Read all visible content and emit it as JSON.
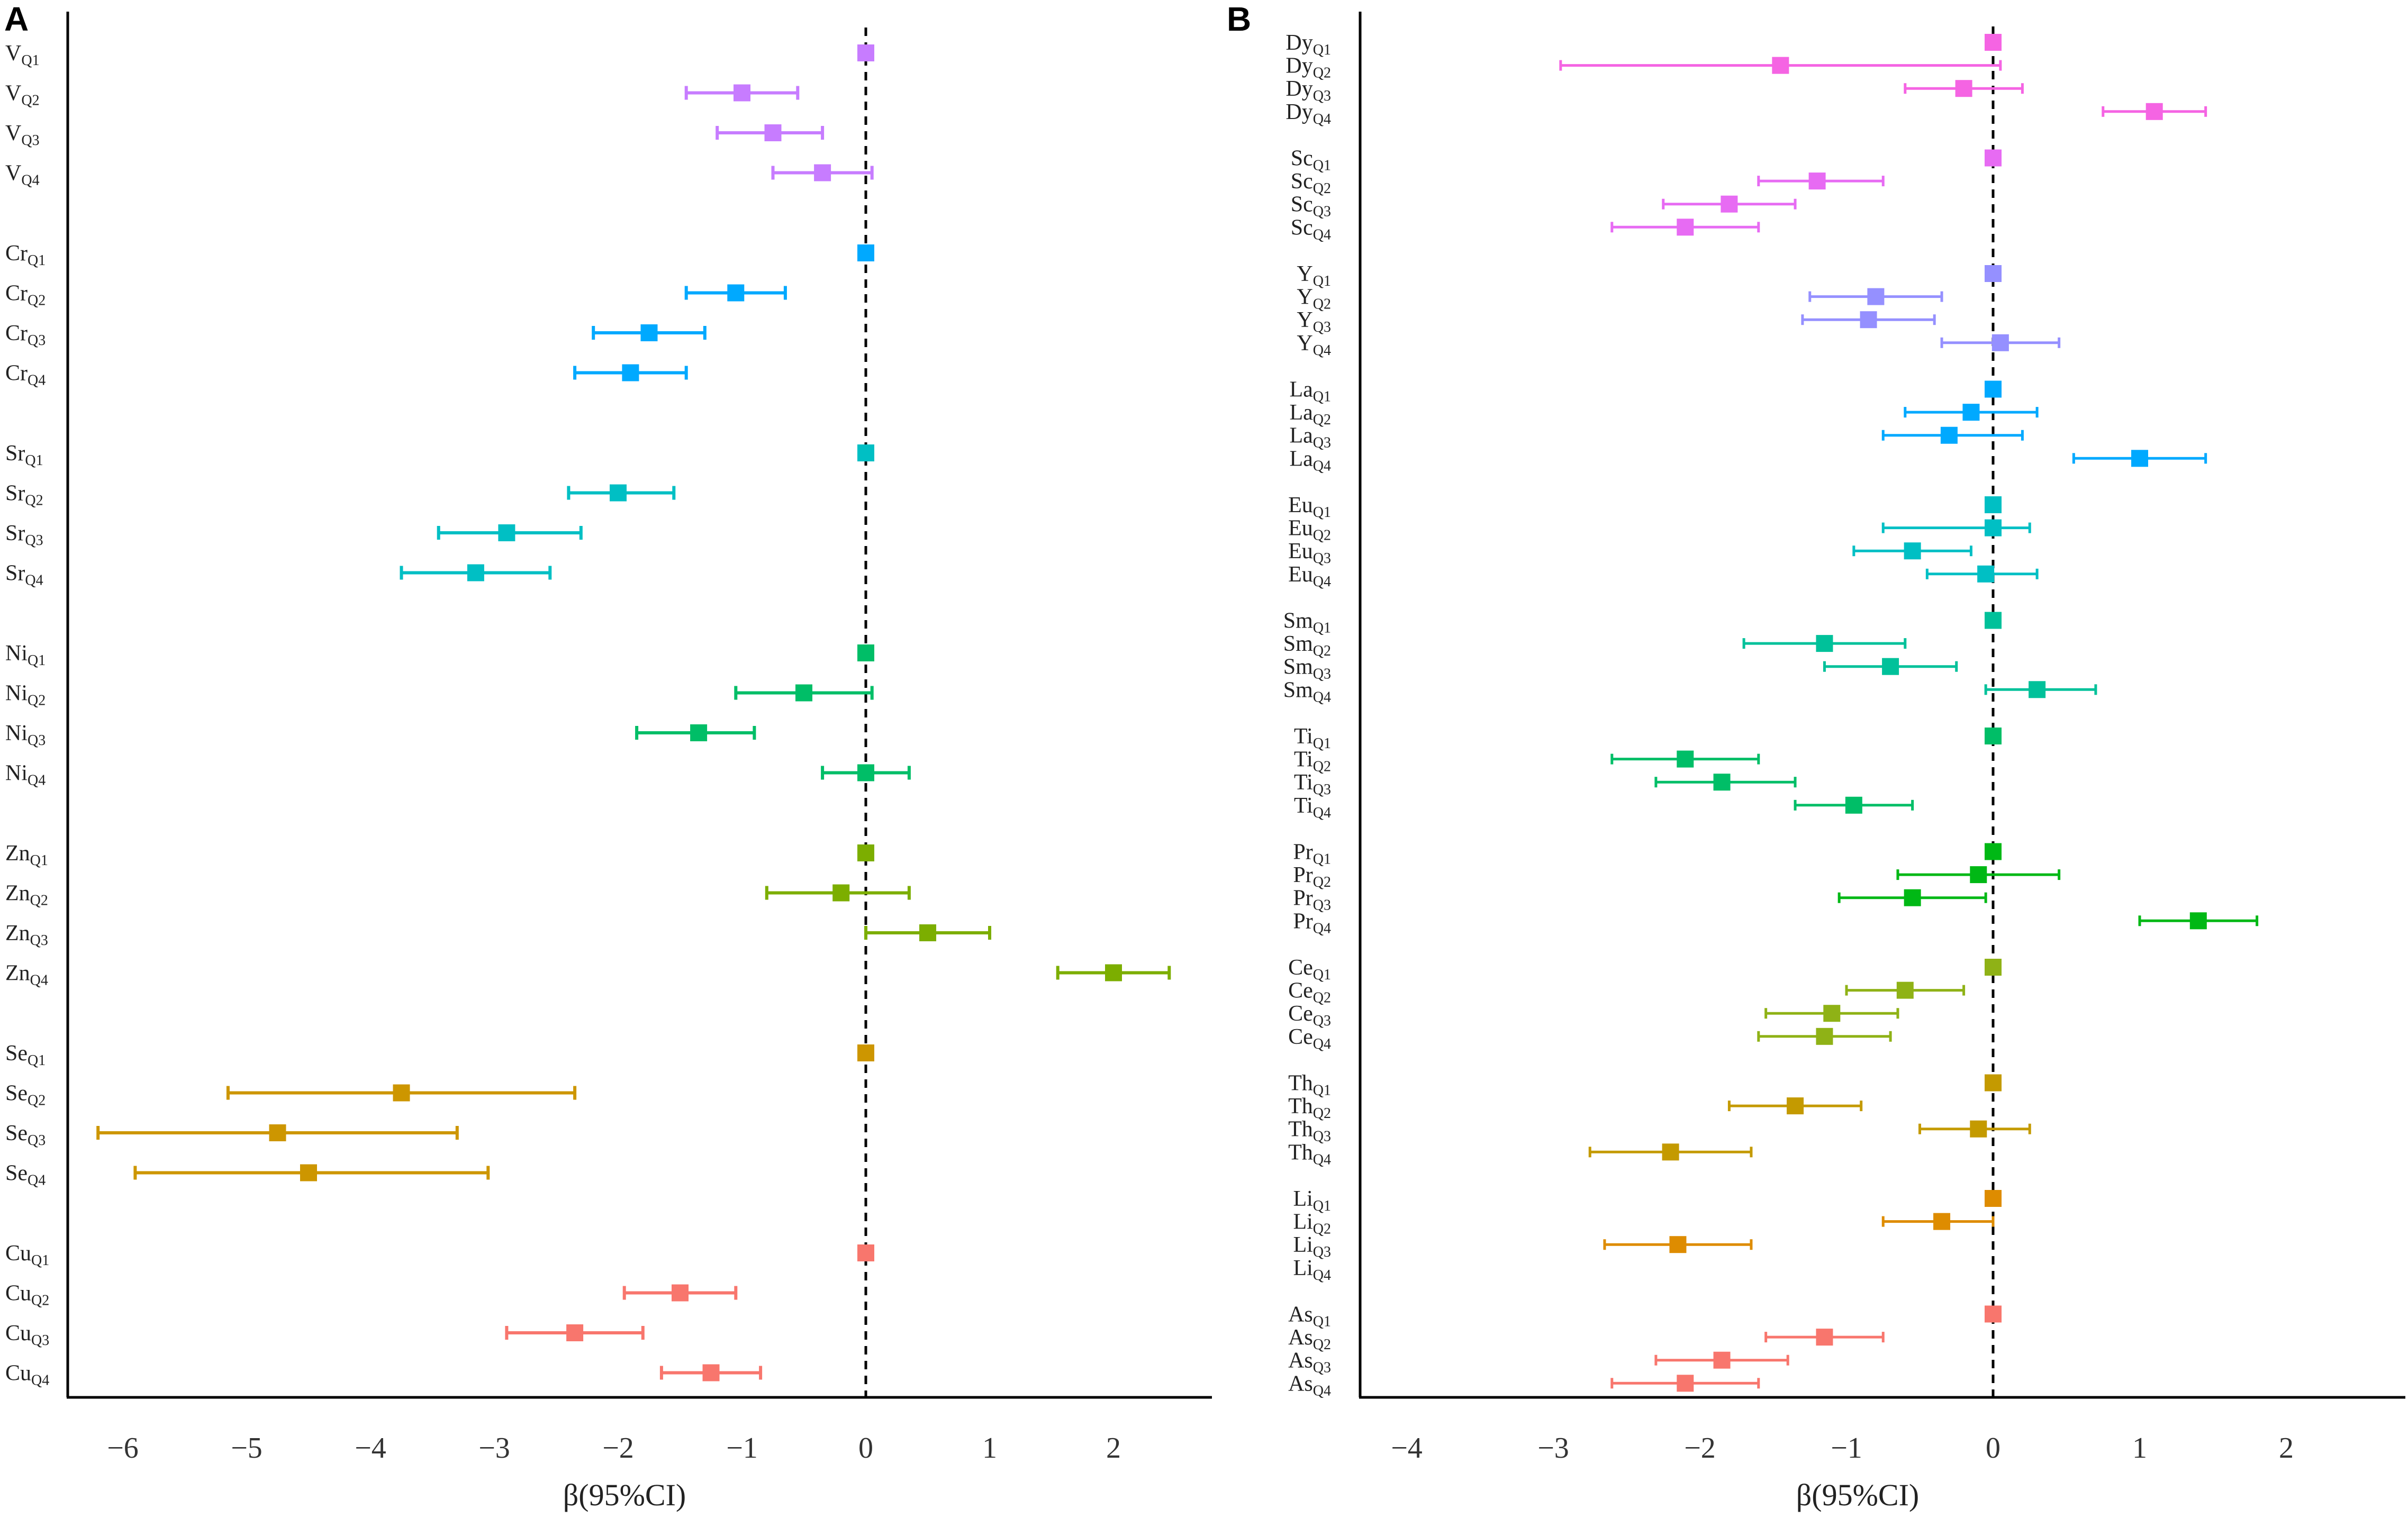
{
  "chart_data": [
    {
      "type": "forest",
      "panel": "A",
      "xlabel": "β(95%CI)",
      "xlim": [
        -6.6,
        2.8
      ],
      "xticks": [
        -6,
        -5,
        -4,
        -3,
        -2,
        -1,
        0,
        1,
        2
      ],
      "xtick_labels": [
        "−6",
        "−5",
        "−4",
        "−3",
        "−2",
        "−1",
        "0",
        "1",
        "2"
      ],
      "reference_line": 0,
      "groups": [
        {
          "element": "V",
          "color": "#c77cff",
          "rows": [
            {
              "label": "V",
              "sub": "Q1",
              "est": 0.0,
              "lo": 0.0,
              "hi": 0.0
            },
            {
              "label": "V",
              "sub": "Q2",
              "est": -1.0,
              "lo": -1.45,
              "hi": -0.55
            },
            {
              "label": "V",
              "sub": "Q3",
              "est": -0.75,
              "lo": -1.2,
              "hi": -0.35
            },
            {
              "label": "V",
              "sub": "Q4",
              "est": -0.35,
              "lo": -0.75,
              "hi": 0.05
            }
          ]
        },
        {
          "element": "Cr",
          "color": "#00a9ff",
          "rows": [
            {
              "label": "Cr",
              "sub": "Q1",
              "est": 0.0,
              "lo": 0.0,
              "hi": 0.0
            },
            {
              "label": "Cr",
              "sub": "Q2",
              "est": -1.05,
              "lo": -1.45,
              "hi": -0.65
            },
            {
              "label": "Cr",
              "sub": "Q3",
              "est": -1.75,
              "lo": -2.2,
              "hi": -1.3
            },
            {
              "label": "Cr",
              "sub": "Q4",
              "est": -1.9,
              "lo": -2.35,
              "hi": -1.45
            }
          ]
        },
        {
          "element": "Sr",
          "color": "#00bfc4",
          "rows": [
            {
              "label": "Sr",
              "sub": "Q1",
              "est": 0.0,
              "lo": 0.0,
              "hi": 0.0
            },
            {
              "label": "Sr",
              "sub": "Q2",
              "est": -2.0,
              "lo": -2.4,
              "hi": -1.55
            },
            {
              "label": "Sr",
              "sub": "Q3",
              "est": -2.9,
              "lo": -3.45,
              "hi": -2.3
            },
            {
              "label": "Sr",
              "sub": "Q4",
              "est": -3.15,
              "lo": -3.75,
              "hi": -2.55
            }
          ]
        },
        {
          "element": "Ni",
          "color": "#00be67",
          "rows": [
            {
              "label": "Ni",
              "sub": "Q1",
              "est": 0.0,
              "lo": 0.0,
              "hi": 0.0
            },
            {
              "label": "Ni",
              "sub": "Q2",
              "est": -0.5,
              "lo": -1.05,
              "hi": 0.05
            },
            {
              "label": "Ni",
              "sub": "Q3",
              "est": -1.35,
              "lo": -1.85,
              "hi": -0.9
            },
            {
              "label": "Ni",
              "sub": "Q4",
              "est": 0.0,
              "lo": -0.35,
              "hi": 0.35
            }
          ]
        },
        {
          "element": "Zn",
          "color": "#7cae00",
          "rows": [
            {
              "label": "Zn",
              "sub": "Q1",
              "est": 0.0,
              "lo": 0.0,
              "hi": 0.0
            },
            {
              "label": "Zn",
              "sub": "Q2",
              "est": -0.2,
              "lo": -0.8,
              "hi": 0.35
            },
            {
              "label": "Zn",
              "sub": "Q3",
              "est": 0.5,
              "lo": 0.0,
              "hi": 1.0
            },
            {
              "label": "Zn",
              "sub": "Q4",
              "est": 2.0,
              "lo": 1.55,
              "hi": 2.45
            }
          ]
        },
        {
          "element": "Se",
          "color": "#cd9600",
          "rows": [
            {
              "label": "Se",
              "sub": "Q1",
              "est": 0.0,
              "lo": 0.0,
              "hi": 0.0
            },
            {
              "label": "Se",
              "sub": "Q2",
              "est": -3.75,
              "lo": -5.15,
              "hi": -2.35
            },
            {
              "label": "Se",
              "sub": "Q3",
              "est": -4.75,
              "lo": -6.2,
              "hi": -3.3
            },
            {
              "label": "Se",
              "sub": "Q4",
              "est": -4.5,
              "lo": -5.9,
              "hi": -3.05
            }
          ]
        },
        {
          "element": "Cu",
          "color": "#f8766d",
          "rows": [
            {
              "label": "Cu",
              "sub": "Q1",
              "est": 0.0,
              "lo": 0.0,
              "hi": 0.0
            },
            {
              "label": "Cu",
              "sub": "Q2",
              "est": -1.5,
              "lo": -1.95,
              "hi": -1.05
            },
            {
              "label": "Cu",
              "sub": "Q3",
              "est": -2.35,
              "lo": -2.9,
              "hi": -1.8
            },
            {
              "label": "Cu",
              "sub": "Q4",
              "est": -1.25,
              "lo": -1.65,
              "hi": -0.85
            }
          ]
        }
      ]
    },
    {
      "type": "forest",
      "panel": "B",
      "xlabel": "β(95%CI)",
      "xlim": [
        -4.4,
        2.8
      ],
      "xticks": [
        -4,
        -3,
        -2,
        -1,
        0,
        1,
        2
      ],
      "xtick_labels": [
        "−4",
        "−3",
        "−2",
        "−1",
        "0",
        "1",
        "2"
      ],
      "reference_line": 0,
      "groups": [
        {
          "element": "Dy",
          "color": "#f564e3",
          "rows": [
            {
              "label": "Dy",
              "sub": "Q1",
              "est": 0.0,
              "lo": 0.0,
              "hi": 0.0
            },
            {
              "label": "Dy",
              "sub": "Q2",
              "est": -1.45,
              "lo": -2.95,
              "hi": 0.05
            },
            {
              "label": "Dy",
              "sub": "Q3",
              "est": -0.2,
              "lo": -0.6,
              "hi": 0.2
            },
            {
              "label": "Dy",
              "sub": "Q4",
              "est": 1.1,
              "lo": 0.75,
              "hi": 1.45
            }
          ]
        },
        {
          "element": "Sc",
          "color": "#e76bf3",
          "rows": [
            {
              "label": "Sc",
              "sub": "Q1",
              "est": 0.0,
              "lo": 0.0,
              "hi": 0.0
            },
            {
              "label": "Sc",
              "sub": "Q2",
              "est": -1.2,
              "lo": -1.6,
              "hi": -0.75
            },
            {
              "label": "Sc",
              "sub": "Q3",
              "est": -1.8,
              "lo": -2.25,
              "hi": -1.35
            },
            {
              "label": "Sc",
              "sub": "Q4",
              "est": -2.1,
              "lo": -2.6,
              "hi": -1.6
            }
          ]
        },
        {
          "element": "Y",
          "color": "#9590ff",
          "rows": [
            {
              "label": "Y",
              "sub": "Q1",
              "est": 0.0,
              "lo": 0.0,
              "hi": 0.0
            },
            {
              "label": "Y",
              "sub": "Q2",
              "est": -0.8,
              "lo": -1.25,
              "hi": -0.35
            },
            {
              "label": "Y",
              "sub": "Q3",
              "est": -0.85,
              "lo": -1.3,
              "hi": -0.4
            },
            {
              "label": "Y",
              "sub": "Q4",
              "est": 0.05,
              "lo": -0.35,
              "hi": 0.45
            }
          ]
        },
        {
          "element": "La",
          "color": "#00a9ff",
          "rows": [
            {
              "label": "La",
              "sub": "Q1",
              "est": 0.0,
              "lo": 0.0,
              "hi": 0.0
            },
            {
              "label": "La",
              "sub": "Q2",
              "est": -0.15,
              "lo": -0.6,
              "hi": 0.3
            },
            {
              "label": "La",
              "sub": "Q3",
              "est": -0.3,
              "lo": -0.75,
              "hi": 0.2
            },
            {
              "label": "La",
              "sub": "Q4",
              "est": 1.0,
              "lo": 0.55,
              "hi": 1.45
            }
          ]
        },
        {
          "element": "Eu",
          "color": "#00bfc4",
          "rows": [
            {
              "label": "Eu",
              "sub": "Q1",
              "est": 0.0,
              "lo": 0.0,
              "hi": 0.0
            },
            {
              "label": "Eu",
              "sub": "Q2",
              "est": 0.0,
              "lo": -0.75,
              "hi": 0.25
            },
            {
              "label": "Eu",
              "sub": "Q3",
              "est": -0.55,
              "lo": -0.95,
              "hi": -0.15
            },
            {
              "label": "Eu",
              "sub": "Q4",
              "est": -0.05,
              "lo": -0.45,
              "hi": 0.3
            }
          ]
        },
        {
          "element": "Sm",
          "color": "#00c19a",
          "rows": [
            {
              "label": "Sm",
              "sub": "Q1",
              "est": 0.0,
              "lo": 0.0,
              "hi": 0.0
            },
            {
              "label": "Sm",
              "sub": "Q2",
              "est": -1.15,
              "lo": -1.7,
              "hi": -0.6
            },
            {
              "label": "Sm",
              "sub": "Q3",
              "est": -0.7,
              "lo": -1.15,
              "hi": -0.25
            },
            {
              "label": "Sm",
              "sub": "Q4",
              "est": 0.3,
              "lo": -0.05,
              "hi": 0.7
            }
          ]
        },
        {
          "element": "Ti",
          "color": "#00be67",
          "rows": [
            {
              "label": "Ti",
              "sub": "Q1",
              "est": 0.0,
              "lo": 0.0,
              "hi": 0.0
            },
            {
              "label": "Ti",
              "sub": "Q2",
              "est": -2.1,
              "lo": -2.6,
              "hi": -1.6
            },
            {
              "label": "Ti",
              "sub": "Q3",
              "est": -1.85,
              "lo": -2.3,
              "hi": -1.35
            },
            {
              "label": "Ti",
              "sub": "Q4",
              "est": -0.95,
              "lo": -1.35,
              "hi": -0.55
            }
          ]
        },
        {
          "element": "Pr",
          "color": "#00b815",
          "rows": [
            {
              "label": "Pr",
              "sub": "Q1",
              "est": 0.0,
              "lo": 0.0,
              "hi": 0.0
            },
            {
              "label": "Pr",
              "sub": "Q2",
              "est": -0.1,
              "lo": -0.65,
              "hi": 0.45
            },
            {
              "label": "Pr",
              "sub": "Q3",
              "est": -0.55,
              "lo": -1.05,
              "hi": -0.05
            },
            {
              "label": "Pr",
              "sub": "Q4",
              "est": 1.4,
              "lo": 1.0,
              "hi": 1.8
            }
          ]
        },
        {
          "element": "Ce",
          "color": "#8fb216",
          "rows": [
            {
              "label": "Ce",
              "sub": "Q1",
              "est": 0.0,
              "lo": 0.0,
              "hi": 0.0
            },
            {
              "label": "Ce",
              "sub": "Q2",
              "est": -0.6,
              "lo": -1.0,
              "hi": -0.2
            },
            {
              "label": "Ce",
              "sub": "Q3",
              "est": -1.1,
              "lo": -1.55,
              "hi": -0.65
            },
            {
              "label": "Ce",
              "sub": "Q4",
              "est": -1.15,
              "lo": -1.6,
              "hi": -0.7
            }
          ]
        },
        {
          "element": "Th",
          "color": "#c49a00",
          "rows": [
            {
              "label": "Th",
              "sub": "Q1",
              "est": 0.0,
              "lo": 0.0,
              "hi": 0.0
            },
            {
              "label": "Th",
              "sub": "Q2",
              "est": -1.35,
              "lo": -1.8,
              "hi": -0.9
            },
            {
              "label": "Th",
              "sub": "Q3",
              "est": -0.1,
              "lo": -0.5,
              "hi": 0.25
            },
            {
              "label": "Th",
              "sub": "Q4",
              "est": -2.2,
              "lo": -2.75,
              "hi": -1.65
            }
          ]
        },
        {
          "element": "Li",
          "color": "#de8c00",
          "rows": [
            {
              "label": "Li",
              "sub": "Q1",
              "est": 0.0,
              "lo": 0.0,
              "hi": 0.0
            },
            {
              "label": "Li",
              "sub": "Q2",
              "est": -0.35,
              "lo": -0.75,
              "hi": 0.0
            },
            {
              "label": "Li",
              "sub": "Q3",
              "est": -2.15,
              "lo": -2.65,
              "hi": -1.65
            },
            {
              "label": "Li",
              "sub": "Q4",
              "est": null,
              "lo": null,
              "hi": null
            }
          ]
        },
        {
          "element": "As",
          "color": "#f8766d",
          "rows": [
            {
              "label": "As",
              "sub": "Q1",
              "est": 0.0,
              "lo": 0.0,
              "hi": 0.0
            },
            {
              "label": "As",
              "sub": "Q2",
              "est": -1.15,
              "lo": -1.55,
              "hi": -0.75
            },
            {
              "label": "As",
              "sub": "Q3",
              "est": -1.85,
              "lo": -2.3,
              "hi": -1.4
            },
            {
              "label": "As",
              "sub": "Q4",
              "est": -2.1,
              "lo": -2.6,
              "hi": -1.6
            }
          ]
        }
      ]
    }
  ],
  "panels": {
    "a": {
      "letter": "A",
      "xlabel": "β(95%CI)"
    },
    "b": {
      "letter": "B",
      "xlabel": "β(95%CI)"
    }
  }
}
